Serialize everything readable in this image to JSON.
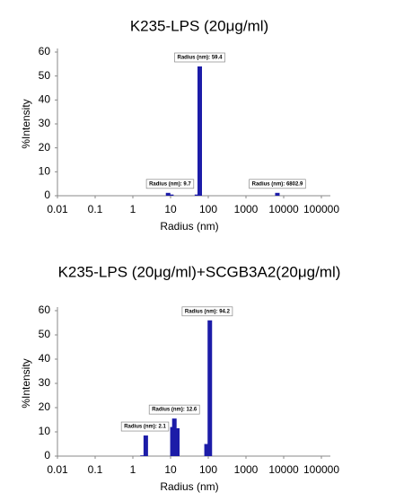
{
  "chart_data": [
    {
      "type": "bar",
      "title": "K235-LPS (20μg/ml)",
      "x_label": "Radius (nm)",
      "y_label": "%Intensity",
      "x_scale": "log",
      "xlim": [
        0.01,
        100000
      ],
      "xticks": [
        0.01,
        0.1,
        1,
        10,
        100,
        1000,
        10000,
        100000
      ],
      "ylim": [
        0,
        60
      ],
      "yticks": [
        0,
        10,
        20,
        30,
        40,
        50,
        60
      ],
      "series": [
        {
          "color": "#1c1ca8",
          "x": [
            8.6,
            10.5,
            50,
            59.4,
            6802.9
          ],
          "values": [
            1.2,
            0.5,
            0.5,
            54,
            1.2
          ]
        }
      ],
      "annotations": [
        {
          "x": 9.7,
          "text": "Radius (nm): 9.7"
        },
        {
          "x": 59.4,
          "text": "Radius (nm): 59.4"
        },
        {
          "x": 6802.9,
          "text": "Radius (nm): 6802.9"
        }
      ]
    },
    {
      "type": "bar",
      "title": "K235-LPS (20μg/ml)+SCGB3A2(20μg/ml)",
      "x_label": "Radius (nm)",
      "y_label": "%Intensity",
      "x_scale": "log",
      "xlim": [
        0.01,
        100000
      ],
      "xticks": [
        0.01,
        0.1,
        1,
        10,
        100,
        1000,
        10000,
        100000
      ],
      "ylim": [
        0,
        60
      ],
      "yticks": [
        0,
        10,
        20,
        30,
        40,
        50,
        60
      ],
      "series": [
        {
          "color": "#1c1ca8",
          "x": [
            1.8,
            2.2,
            11.2,
            12.6,
            15.1,
            90,
            110
          ],
          "values": [
            0.3,
            8.5,
            12,
            15.5,
            11.5,
            5,
            56
          ]
        }
      ],
      "annotations": [
        {
          "x": 2.1,
          "text": "Radius (nm): 2.1"
        },
        {
          "x": 12.6,
          "text": "Radius (nm): 12.6"
        },
        {
          "x": 94.2,
          "text": "Radius (nm): 94.2"
        }
      ]
    }
  ]
}
